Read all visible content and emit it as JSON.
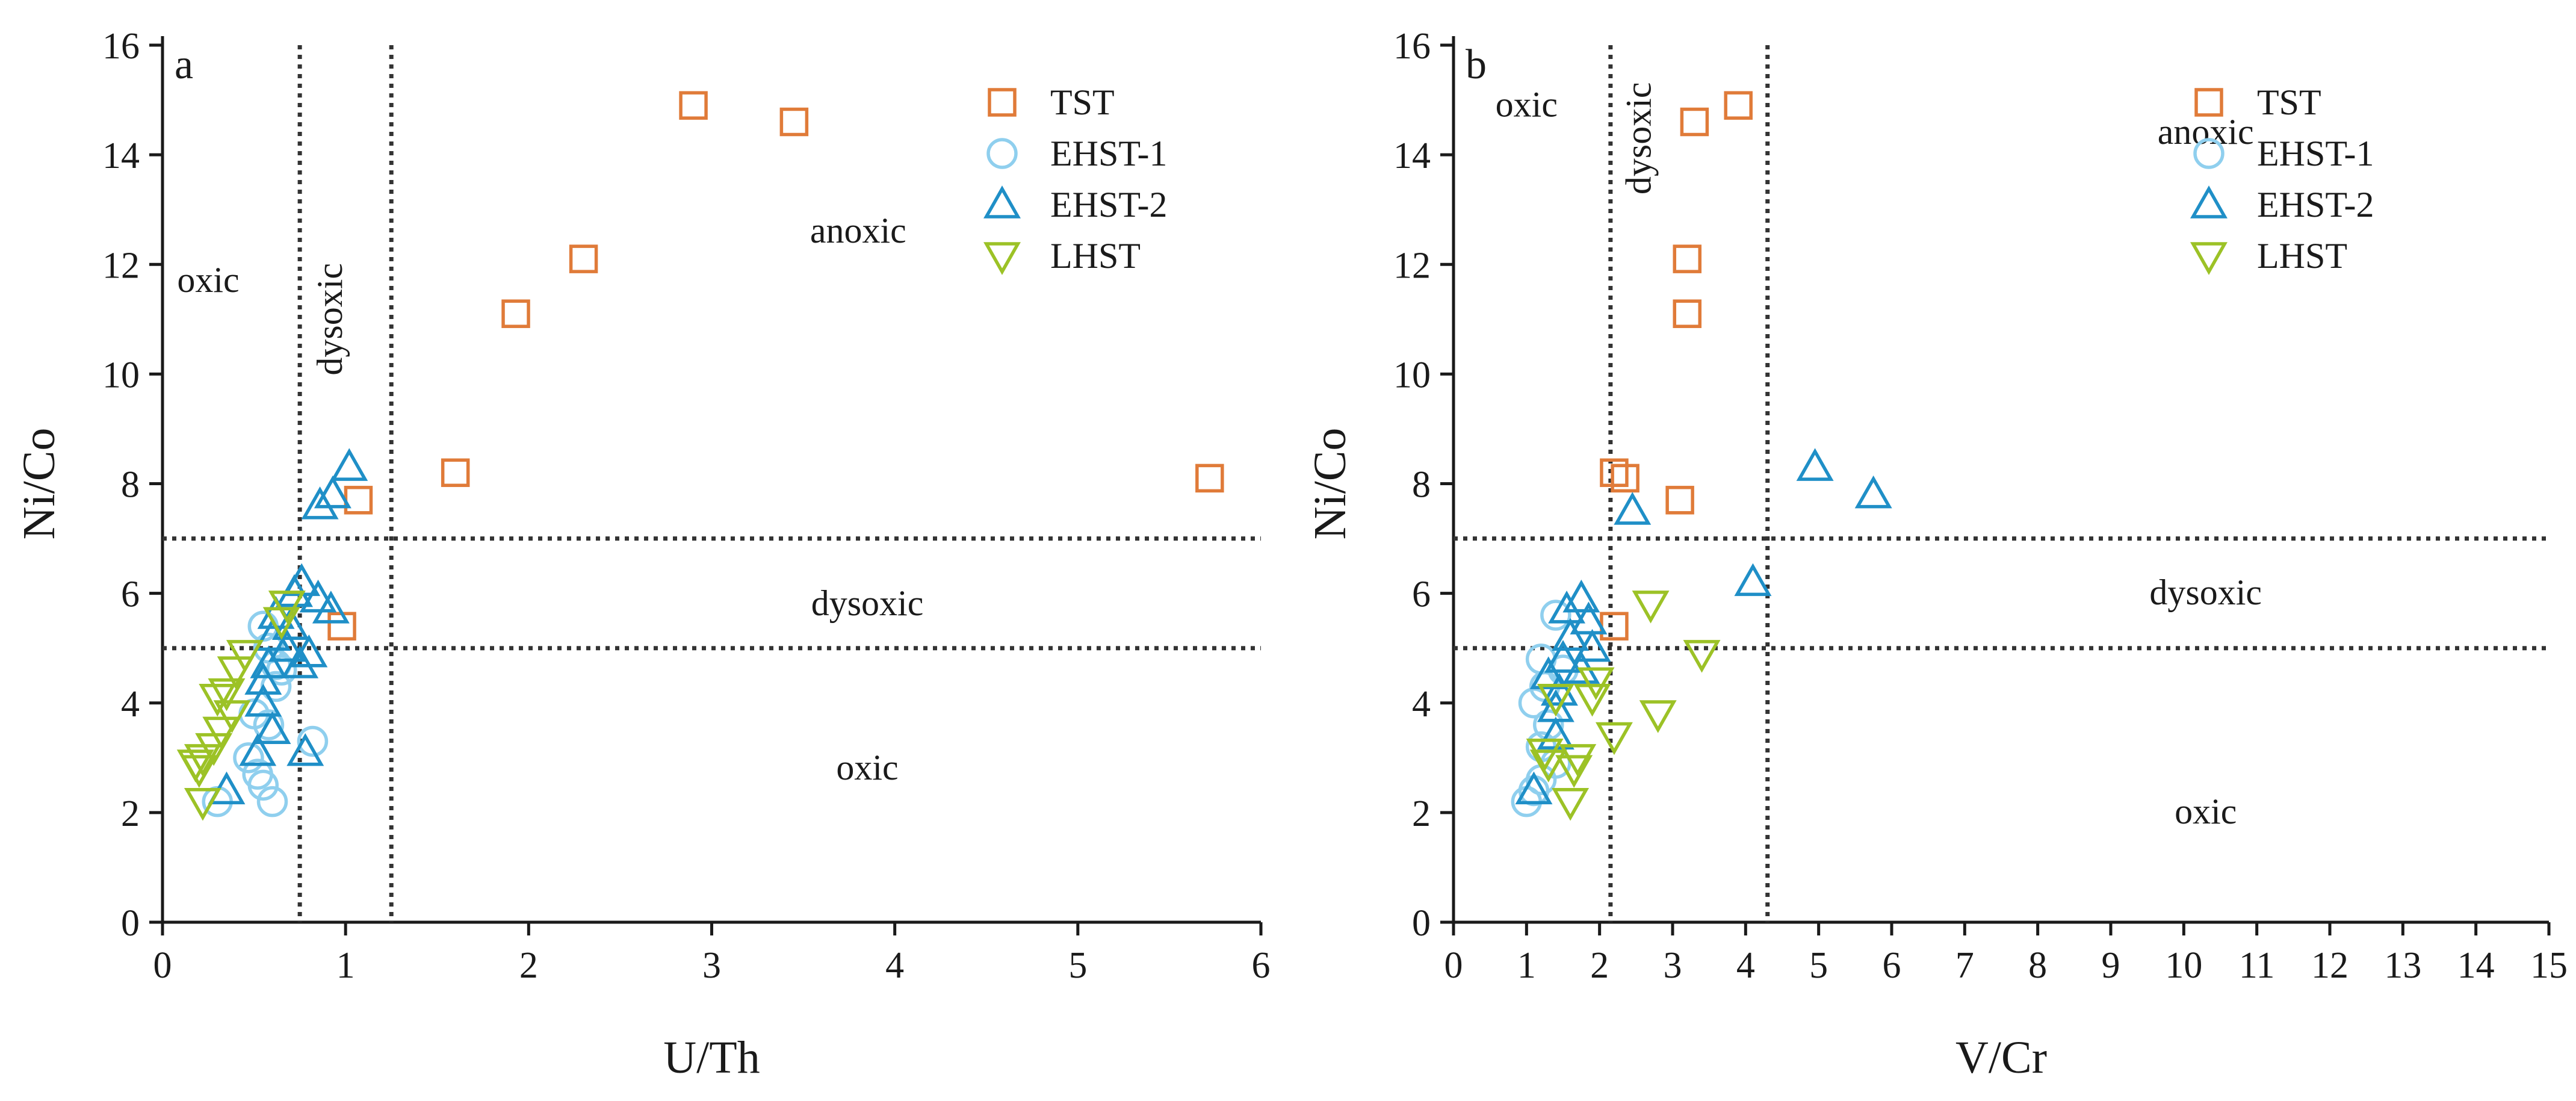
{
  "colors": {
    "TST": "#e07b39",
    "EHST-1": "#8fcfee",
    "EHST-2": "#1f8fc7",
    "LHST": "#9cc226",
    "axis": "#1a1a1a",
    "guide": "#333333"
  },
  "chart_data": [
    {
      "type": "scatter",
      "panel_label": "a",
      "xlabel": "U/Th",
      "ylabel": "Ni/Co",
      "xlim": [
        0,
        6
      ],
      "ylim": [
        0,
        16
      ],
      "xticks": [
        0,
        1,
        2,
        3,
        4,
        5,
        6
      ],
      "yticks": [
        0,
        2,
        4,
        6,
        8,
        10,
        12,
        14,
        16
      ],
      "legend_position": "top-right",
      "legend": [
        {
          "name": "TST",
          "marker": "square"
        },
        {
          "name": "EHST-1",
          "marker": "circle"
        },
        {
          "name": "EHST-2",
          "marker": "triangle-up"
        },
        {
          "name": "LHST",
          "marker": "triangle-down"
        }
      ],
      "guides": {
        "vertical": [
          0.75,
          1.25
        ],
        "horizontal": [
          5,
          7
        ]
      },
      "annotations": [
        {
          "text": "oxic",
          "x": 0.25,
          "y": 11.5,
          "rotate": false
        },
        {
          "text": "dysoxic",
          "x": 0.98,
          "y": 11.0,
          "rotate": true
        },
        {
          "text": "anoxic",
          "x": 3.8,
          "y": 12.4,
          "rotate": false
        },
        {
          "text": "dysoxic",
          "x": 3.85,
          "y": 5.6,
          "rotate": false
        },
        {
          "text": "oxic",
          "x": 3.85,
          "y": 2.6,
          "rotate": false
        }
      ],
      "series": [
        {
          "name": "TST",
          "marker": "square",
          "points": [
            [
              2.9,
              14.9
            ],
            [
              3.45,
              14.6
            ],
            [
              2.3,
              12.1
            ],
            [
              1.93,
              11.1
            ],
            [
              1.6,
              8.2
            ],
            [
              5.72,
              8.1
            ],
            [
              1.07,
              7.7
            ],
            [
              0.98,
              5.4
            ]
          ]
        },
        {
          "name": "EHST-1",
          "marker": "circle",
          "points": [
            [
              0.55,
              5.4
            ],
            [
              0.58,
              5.0
            ],
            [
              0.62,
              4.7
            ],
            [
              0.65,
              4.6
            ],
            [
              0.62,
              4.3
            ],
            [
              0.5,
              3.8
            ],
            [
              0.58,
              3.6
            ],
            [
              0.82,
              3.3
            ],
            [
              0.47,
              3.0
            ],
            [
              0.52,
              2.7
            ],
            [
              0.55,
              2.5
            ],
            [
              0.6,
              2.2
            ],
            [
              0.3,
              2.2
            ]
          ]
        },
        {
          "name": "EHST-2",
          "marker": "triangle-up",
          "points": [
            [
              1.02,
              8.3
            ],
            [
              0.93,
              7.8
            ],
            [
              0.86,
              7.6
            ],
            [
              0.76,
              6.2
            ],
            [
              0.72,
              6.0
            ],
            [
              0.85,
              5.9
            ],
            [
              0.92,
              5.7
            ],
            [
              0.62,
              5.6
            ],
            [
              0.7,
              5.4
            ],
            [
              0.6,
              5.2
            ],
            [
              0.68,
              5.0
            ],
            [
              0.8,
              4.9
            ],
            [
              0.58,
              4.7
            ],
            [
              0.75,
              4.7
            ],
            [
              0.55,
              4.4
            ],
            [
              0.55,
              4.0
            ],
            [
              0.6,
              3.5
            ],
            [
              0.52,
              3.1
            ],
            [
              0.78,
              3.1
            ],
            [
              0.35,
              2.4
            ]
          ]
        },
        {
          "name": "LHST",
          "marker": "triangle-down",
          "points": [
            [
              0.68,
              5.8
            ],
            [
              0.65,
              5.5
            ],
            [
              0.45,
              4.9
            ],
            [
              0.4,
              4.6
            ],
            [
              0.3,
              4.1
            ],
            [
              0.35,
              4.2
            ],
            [
              0.38,
              3.8
            ],
            [
              0.32,
              3.5
            ],
            [
              0.28,
              3.2
            ],
            [
              0.22,
              3.0
            ],
            [
              0.18,
              2.9
            ],
            [
              0.2,
              2.8
            ],
            [
              0.22,
              2.2
            ]
          ]
        }
      ]
    },
    {
      "type": "scatter",
      "panel_label": "b",
      "xlabel": "V/Cr",
      "ylabel": "Ni/Co",
      "xlim": [
        0,
        15
      ],
      "ylim": [
        0,
        16
      ],
      "xticks": [
        0,
        1,
        2,
        3,
        4,
        5,
        6,
        7,
        8,
        9,
        10,
        11,
        12,
        13,
        14,
        15
      ],
      "yticks": [
        0,
        2,
        4,
        6,
        8,
        10,
        12,
        14,
        16
      ],
      "legend_position": "top-right",
      "legend": [
        {
          "name": "TST",
          "marker": "square"
        },
        {
          "name": "EHST-1",
          "marker": "circle"
        },
        {
          "name": "EHST-2",
          "marker": "triangle-up"
        },
        {
          "name": "LHST",
          "marker": "triangle-down"
        }
      ],
      "guides": {
        "vertical": [
          2.15,
          4.3
        ],
        "horizontal": [
          5,
          7
        ]
      },
      "annotations": [
        {
          "text": "oxic",
          "x": 1.0,
          "y": 14.7,
          "rotate": false
        },
        {
          "text": "dysoxic",
          "x": 2.7,
          "y": 14.3,
          "rotate": true
        },
        {
          "text": "anoxic",
          "x": 10.3,
          "y": 14.2,
          "rotate": false
        },
        {
          "text": "dysoxic",
          "x": 10.3,
          "y": 5.8,
          "rotate": false
        },
        {
          "text": "oxic",
          "x": 10.3,
          "y": 1.8,
          "rotate": false
        }
      ],
      "series": [
        {
          "name": "TST",
          "marker": "square",
          "points": [
            [
              3.9,
              14.9
            ],
            [
              3.3,
              14.6
            ],
            [
              3.2,
              12.1
            ],
            [
              3.2,
              11.1
            ],
            [
              2.2,
              8.2
            ],
            [
              2.35,
              8.1
            ],
            [
              3.1,
              7.7
            ],
            [
              2.2,
              5.4
            ]
          ]
        },
        {
          "name": "EHST-1",
          "marker": "circle",
          "points": [
            [
              1.4,
              5.6
            ],
            [
              1.2,
              4.8
            ],
            [
              1.5,
              4.6
            ],
            [
              1.25,
              4.3
            ],
            [
              1.1,
              4.0
            ],
            [
              1.3,
              3.6
            ],
            [
              1.2,
              3.2
            ],
            [
              1.4,
              2.9
            ],
            [
              1.2,
              2.6
            ],
            [
              1.1,
              2.4
            ],
            [
              1.0,
              2.2
            ]
          ]
        },
        {
          "name": "EHST-2",
          "marker": "triangle-up",
          "points": [
            [
              4.95,
              8.3
            ],
            [
              5.75,
              7.8
            ],
            [
              2.45,
              7.5
            ],
            [
              4.1,
              6.2
            ],
            [
              1.75,
              5.9
            ],
            [
              1.55,
              5.7
            ],
            [
              1.85,
              5.5
            ],
            [
              1.6,
              5.2
            ],
            [
              1.9,
              5.0
            ],
            [
              1.5,
              4.8
            ],
            [
              1.75,
              4.6
            ],
            [
              1.3,
              4.5
            ],
            [
              1.45,
              4.2
            ],
            [
              1.4,
              3.9
            ],
            [
              1.4,
              3.4
            ],
            [
              1.1,
              2.4
            ]
          ]
        },
        {
          "name": "LHST",
          "marker": "triangle-down",
          "points": [
            [
              2.7,
              5.8
            ],
            [
              3.4,
              4.9
            ],
            [
              1.95,
              4.4
            ],
            [
              1.9,
              4.1
            ],
            [
              1.4,
              4.1
            ],
            [
              2.8,
              3.8
            ],
            [
              2.2,
              3.4
            ],
            [
              1.25,
              3.1
            ],
            [
              1.7,
              3.0
            ],
            [
              1.3,
              2.9
            ],
            [
              1.65,
              2.8
            ],
            [
              1.6,
              2.2
            ]
          ]
        }
      ]
    }
  ]
}
